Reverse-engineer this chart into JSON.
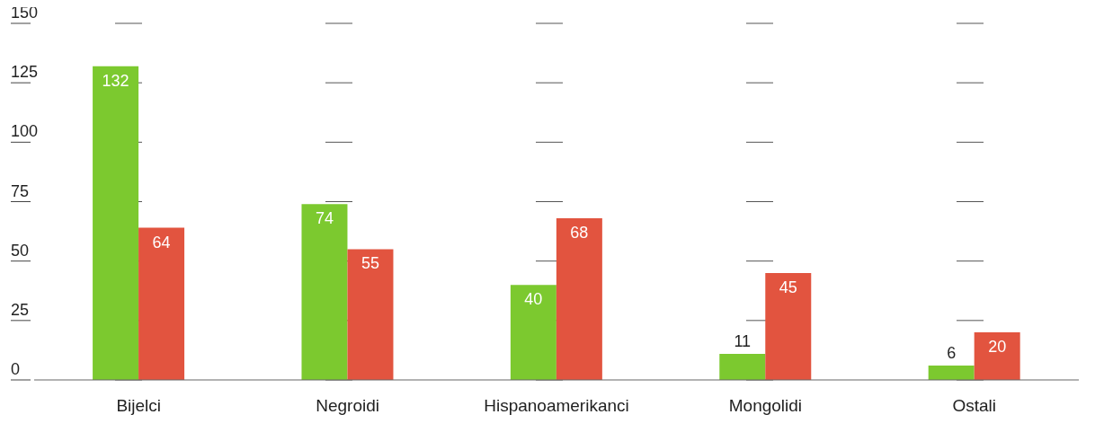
{
  "chart_data": {
    "type": "bar",
    "categories": [
      "Bijelci",
      "Negroidi",
      "Hispanoamerikanci",
      "Mongolidi",
      "Ostali"
    ],
    "series": [
      {
        "color": "#7cc92f",
        "values": [
          132,
          74,
          40,
          11,
          6
        ]
      },
      {
        "color": "#e2543f",
        "values": [
          64,
          55,
          68,
          45,
          20
        ]
      }
    ],
    "ylim": [
      0,
      150
    ],
    "yticks": [
      0,
      25,
      50,
      75,
      100,
      125,
      150
    ],
    "grid": "y",
    "data_labels": true
  }
}
